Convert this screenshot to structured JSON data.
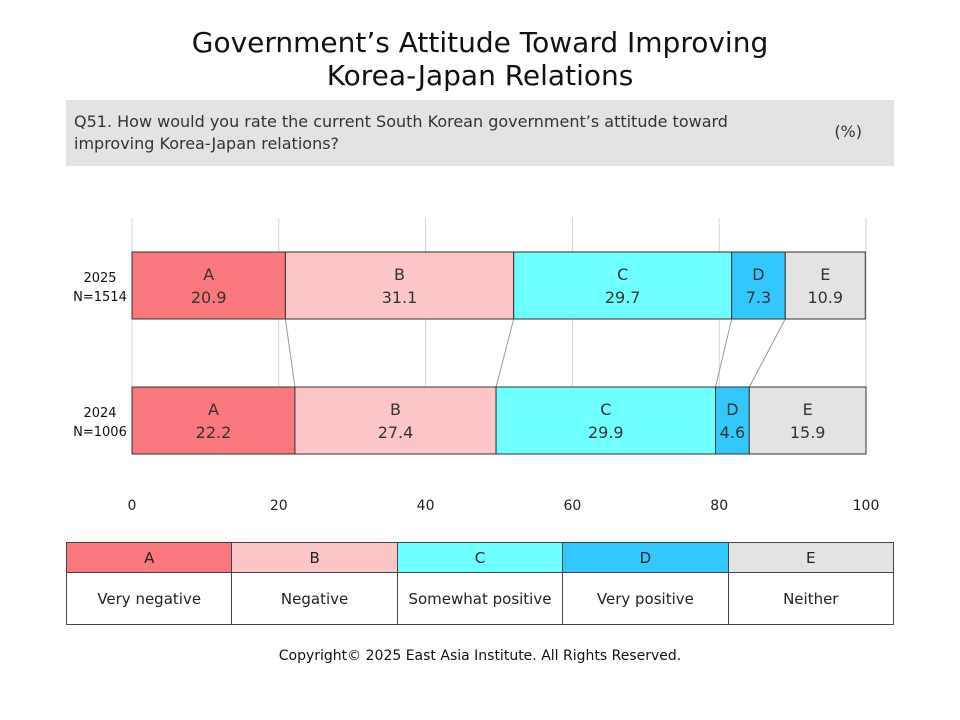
{
  "title": {
    "line1": "Government’s Attitude Toward Improving",
    "line2": "Korea-Japan Relations"
  },
  "question": {
    "text": "Q51. How would you rate the current South Korean government’s attitude toward improving Korea-Japan relations?",
    "unit": "(%)"
  },
  "chart_data": {
    "type": "bar",
    "orientation": "horizontal",
    "stacked": true,
    "xlim": [
      0,
      100
    ],
    "x_ticks": [
      0,
      20,
      40,
      60,
      80,
      100
    ],
    "grid": true,
    "rows": [
      {
        "label": "2025",
        "sublabel": "N=1514"
      },
      {
        "label": "2024",
        "sublabel": "N=1006"
      }
    ],
    "series": [
      {
        "name": "A",
        "color": "#f8787d",
        "values": [
          20.9,
          22.2
        ]
      },
      {
        "name": "B",
        "color": "#fcc6c8",
        "values": [
          31.1,
          27.4
        ]
      },
      {
        "name": "C",
        "color": "#6effff",
        "values": [
          29.7,
          29.9
        ]
      },
      {
        "name": "D",
        "color": "#33c8fb",
        "values": [
          7.3,
          4.6
        ]
      },
      {
        "name": "E",
        "color": "#e3e3e3",
        "values": [
          10.9,
          15.9
        ]
      }
    ]
  },
  "legend": [
    {
      "code": "A",
      "label": "Very negative",
      "color": "#f8787d"
    },
    {
      "code": "B",
      "label": "Negative",
      "color": "#fcc6c8"
    },
    {
      "code": "C",
      "label": "Somewhat positive",
      "color": "#6effff"
    },
    {
      "code": "D",
      "label": "Very positive",
      "color": "#33c8fb"
    },
    {
      "code": "E",
      "label": "Neither",
      "color": "#e3e3e3"
    }
  ],
  "footer": "Copyright© 2025 East Asia Institute. All Rights Reserved."
}
